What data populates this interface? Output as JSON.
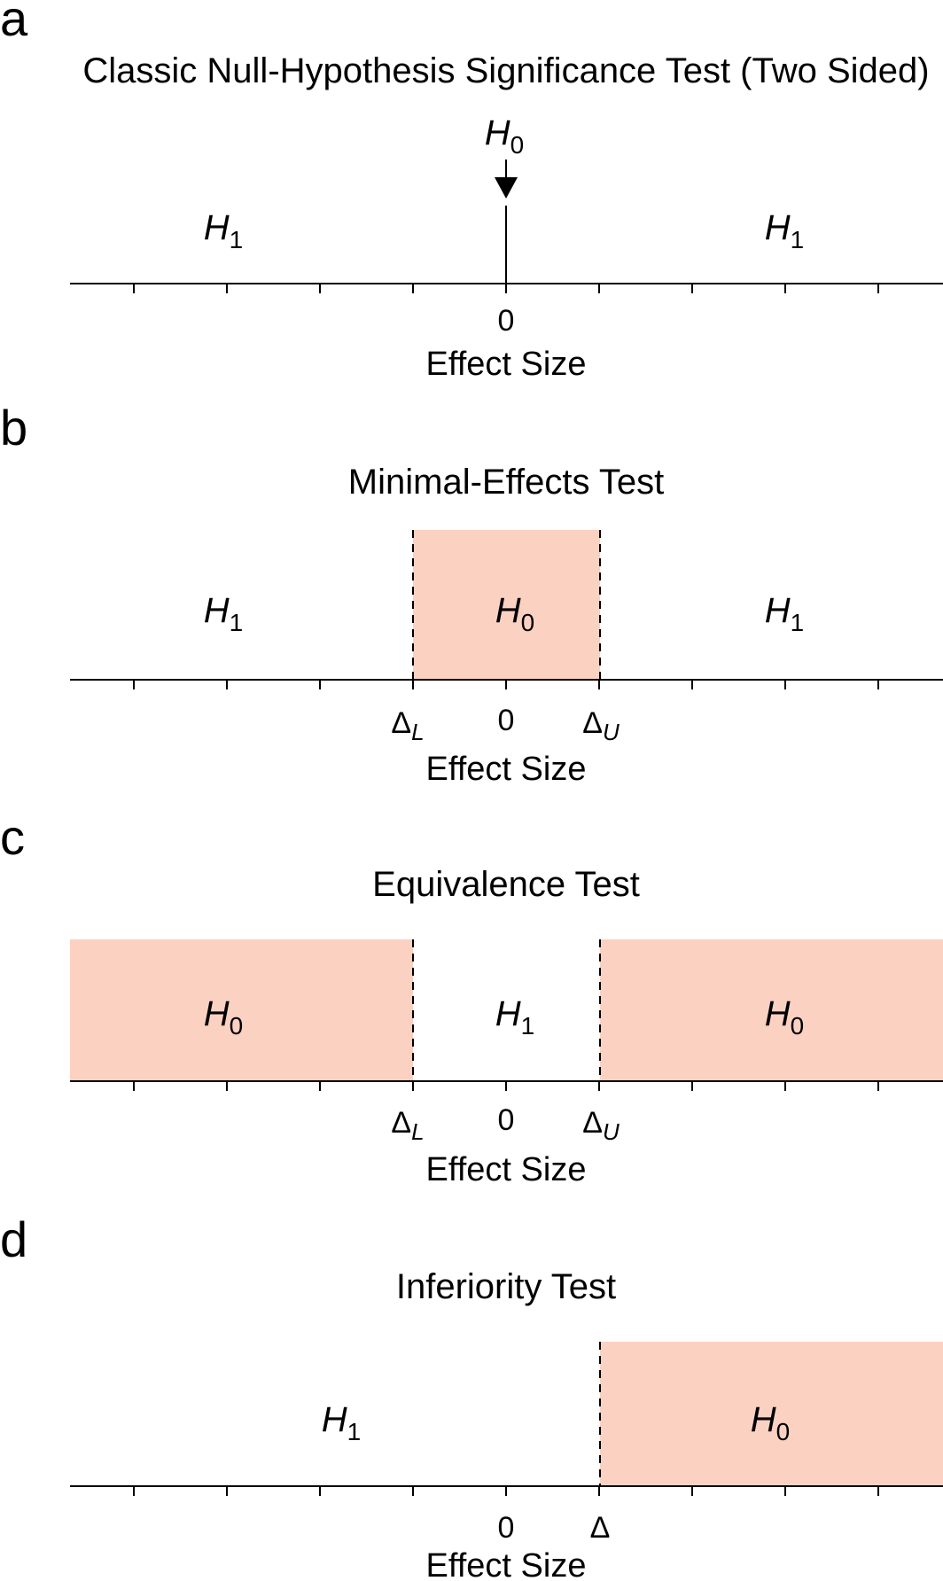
{
  "colors": {
    "h0_region": "#fbd1c2",
    "ink": "#000000"
  },
  "panels": [
    {
      "letter": "a",
      "title": "Classic Null-Hypothesis Significance Test (Two Sided)",
      "h0_arrow": {
        "main": "H",
        "sub": "0"
      },
      "regions": [
        {
          "main": "H",
          "sub": "1"
        },
        {
          "main": "H",
          "sub": "1"
        }
      ],
      "zero_label": "0",
      "axis_title": "Effect Size"
    },
    {
      "letter": "b",
      "title": "Minimal-Effects Test",
      "regions": [
        {
          "main": "H",
          "sub": "1"
        },
        {
          "main": "H",
          "sub": "0"
        },
        {
          "main": "H",
          "sub": "1"
        }
      ],
      "delta_lower": {
        "symbol": "Δ",
        "sub": "L"
      },
      "zero_label": "0",
      "delta_upper": {
        "symbol": "Δ",
        "sub": "U"
      },
      "axis_title": "Effect Size"
    },
    {
      "letter": "c",
      "title": "Equivalence Test",
      "regions": [
        {
          "main": "H",
          "sub": "0"
        },
        {
          "main": "H",
          "sub": "1"
        },
        {
          "main": "H",
          "sub": "0"
        }
      ],
      "delta_lower": {
        "symbol": "Δ",
        "sub": "L"
      },
      "zero_label": "0",
      "delta_upper": {
        "symbol": "Δ",
        "sub": "U"
      },
      "axis_title": "Effect Size"
    },
    {
      "letter": "d",
      "title": "Inferiority Test",
      "regions": [
        {
          "main": "H",
          "sub": "1"
        },
        {
          "main": "H",
          "sub": "0"
        }
      ],
      "zero_label": "0",
      "delta": {
        "symbol": "Δ"
      },
      "axis_title": "Effect Size"
    }
  ]
}
